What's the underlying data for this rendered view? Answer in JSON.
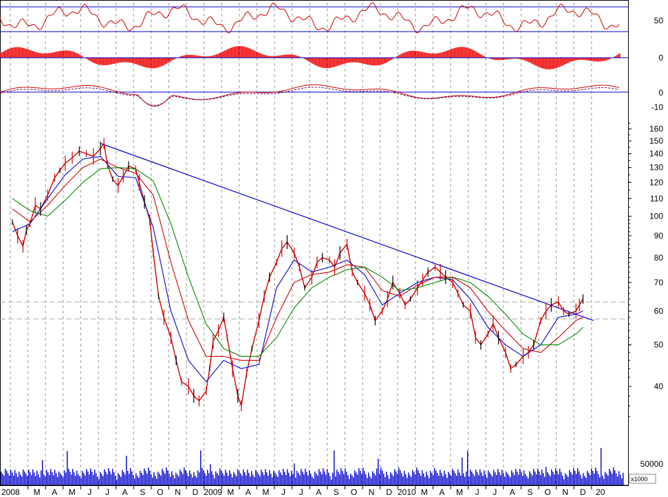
{
  "chart_data": {
    "type": "line",
    "title": "",
    "price_scale": "log",
    "price_ylim": [
      33,
      165
    ],
    "price_ticks": [
      160,
      150,
      140,
      130,
      120,
      110,
      100,
      90,
      80,
      70,
      60,
      50,
      40
    ],
    "rsi_ticks": [
      50
    ],
    "macd_ticks": [
      0
    ],
    "osc_ticks": [
      0,
      -10
    ],
    "volume_ticks": [
      50000
    ],
    "volume_unit": "x1000",
    "x_labels": [
      "2008",
      "M",
      "A",
      "M",
      "J",
      "J",
      "A",
      "S",
      "O",
      "N",
      "D",
      "2009",
      "M",
      "A",
      "M",
      "J",
      "J",
      "A",
      "S",
      "O",
      "N",
      "D",
      "2010",
      "M",
      "A",
      "M",
      "J",
      "J",
      "A",
      "S",
      "O",
      "N",
      "D",
      "20"
    ],
    "dashed_reference_levels": [
      63,
      57.5
    ],
    "colors": {
      "price": "#cc0000",
      "ma_short": "#0000cc",
      "ma_mid": "#cc0000",
      "ma_long": "#008800",
      "trendline": "#0000cc",
      "volume": "#0000cc",
      "indicator": "#cc0000",
      "guide": "#0000cc",
      "grid": "#999999"
    },
    "trendline": {
      "from": {
        "month_index": 5,
        "y": 148
      },
      "to": {
        "month_index": 33,
        "y": 57
      }
    },
    "series": [
      {
        "values": [
          [
            0,
            97
          ],
          [
            0.3,
            90
          ],
          [
            0.6,
            85
          ],
          [
            0.8,
            93
          ],
          [
            1,
            96
          ],
          [
            1.3,
            106
          ],
          [
            1.6,
            104
          ],
          [
            2,
            112
          ],
          [
            2.4,
            123
          ],
          [
            2.7,
            128
          ],
          [
            3,
            133
          ],
          [
            3.4,
            137
          ],
          [
            3.8,
            142
          ],
          [
            4.2,
            140
          ],
          [
            4.6,
            138
          ],
          [
            5,
            144
          ],
          [
            5.2,
            148
          ],
          [
            5.4,
            132
          ],
          [
            5.7,
            122
          ],
          [
            6,
            118
          ],
          [
            6.3,
            124
          ],
          [
            6.6,
            131
          ],
          [
            7,
            129
          ],
          [
            7.2,
            120
          ],
          [
            7.5,
            108
          ],
          [
            7.8,
            98
          ],
          [
            8,
            82
          ],
          [
            8.3,
            65
          ],
          [
            8.6,
            58
          ],
          [
            9,
            52
          ],
          [
            9.3,
            46
          ],
          [
            9.6,
            41
          ],
          [
            10,
            40
          ],
          [
            10.3,
            38
          ],
          [
            10.6,
            37
          ],
          [
            11,
            39
          ],
          [
            11.2,
            44
          ],
          [
            11.4,
            51
          ],
          [
            11.7,
            54
          ],
          [
            12,
            58
          ],
          [
            12.2,
            52
          ],
          [
            12.5,
            44
          ],
          [
            12.8,
            38
          ],
          [
            13,
            36
          ],
          [
            13.3,
            43
          ],
          [
            13.6,
            49
          ],
          [
            14,
            57
          ],
          [
            14.3,
            65
          ],
          [
            14.6,
            72
          ],
          [
            15,
            78
          ],
          [
            15.3,
            84
          ],
          [
            15.6,
            87
          ],
          [
            16,
            82
          ],
          [
            16.3,
            76
          ],
          [
            16.6,
            68
          ],
          [
            17,
            72
          ],
          [
            17.3,
            78
          ],
          [
            17.6,
            80
          ],
          [
            18,
            79
          ],
          [
            18.3,
            76
          ],
          [
            18.6,
            82
          ],
          [
            19,
            86
          ],
          [
            19.3,
            74
          ],
          [
            19.6,
            70
          ],
          [
            20,
            66
          ],
          [
            20.3,
            62
          ],
          [
            20.6,
            57
          ],
          [
            21,
            60
          ],
          [
            21.3,
            64
          ],
          [
            21.6,
            70
          ],
          [
            22,
            66
          ],
          [
            22.3,
            62
          ],
          [
            22.6,
            64
          ],
          [
            23,
            68
          ],
          [
            23.3,
            71
          ],
          [
            23.6,
            74
          ],
          [
            24,
            76
          ],
          [
            24.3,
            74
          ],
          [
            24.6,
            72
          ],
          [
            25,
            70
          ],
          [
            25.3,
            66
          ],
          [
            25.6,
            62
          ],
          [
            26,
            60
          ],
          [
            26.3,
            52
          ],
          [
            26.6,
            50
          ],
          [
            27,
            53
          ],
          [
            27.3,
            56
          ],
          [
            27.6,
            52
          ],
          [
            28,
            48
          ],
          [
            28.3,
            44
          ],
          [
            28.6,
            45
          ],
          [
            29,
            47
          ],
          [
            29.3,
            48
          ],
          [
            29.6,
            50
          ],
          [
            30,
            57
          ],
          [
            30.3,
            60
          ],
          [
            30.6,
            62
          ],
          [
            31,
            63
          ],
          [
            31.3,
            60
          ],
          [
            31.6,
            59
          ],
          [
            32,
            60
          ],
          [
            32.2,
            62
          ],
          [
            32.4,
            64
          ]
        ]
      },
      {
        "values": [
          [
            0,
            92
          ],
          [
            1,
            96
          ],
          [
            2,
            110
          ],
          [
            3,
            125
          ],
          [
            4,
            136
          ],
          [
            5,
            138
          ],
          [
            6,
            124
          ],
          [
            7,
            123
          ],
          [
            8,
            94
          ],
          [
            9,
            60
          ],
          [
            10,
            46
          ],
          [
            11,
            41
          ],
          [
            12,
            46
          ],
          [
            13,
            44
          ],
          [
            14,
            45
          ],
          [
            15,
            68
          ],
          [
            16,
            79
          ],
          [
            17,
            74
          ],
          [
            18,
            76
          ],
          [
            19,
            79
          ],
          [
            20,
            73
          ],
          [
            21,
            62
          ],
          [
            22,
            66
          ],
          [
            23,
            70
          ],
          [
            24,
            72
          ],
          [
            25,
            71
          ],
          [
            26,
            64
          ],
          [
            27,
            55
          ],
          [
            28,
            50
          ],
          [
            29,
            47
          ],
          [
            30,
            50
          ],
          [
            31,
            58
          ],
          [
            32,
            59
          ],
          [
            32.4,
            60
          ]
        ]
      },
      {
        "values": [
          [
            0,
            104
          ],
          [
            1,
            97
          ],
          [
            2,
            106
          ],
          [
            3,
            118
          ],
          [
            4,
            130
          ],
          [
            5,
            136
          ],
          [
            6,
            130
          ],
          [
            7,
            126
          ],
          [
            8,
            112
          ],
          [
            9,
            78
          ],
          [
            10,
            57
          ],
          [
            11,
            47
          ],
          [
            12,
            47
          ],
          [
            13,
            46
          ],
          [
            14,
            46
          ],
          [
            15,
            58
          ],
          [
            16,
            70
          ],
          [
            17,
            73
          ],
          [
            18,
            74
          ],
          [
            19,
            77
          ],
          [
            20,
            76
          ],
          [
            21,
            67
          ],
          [
            22,
            65
          ],
          [
            23,
            69
          ],
          [
            24,
            72
          ],
          [
            25,
            72
          ],
          [
            26,
            68
          ],
          [
            27,
            60
          ],
          [
            28,
            54
          ],
          [
            29,
            49
          ],
          [
            30,
            48
          ],
          [
            31,
            52
          ],
          [
            32,
            57
          ],
          [
            32.4,
            58
          ]
        ]
      },
      {
        "values": [
          [
            0,
            110
          ],
          [
            1,
            103
          ],
          [
            2,
            100
          ],
          [
            3,
            109
          ],
          [
            4,
            120
          ],
          [
            5,
            129
          ],
          [
            6,
            130
          ],
          [
            7,
            129
          ],
          [
            8,
            121
          ],
          [
            9,
            96
          ],
          [
            10,
            72
          ],
          [
            11,
            56
          ],
          [
            12,
            49
          ],
          [
            13,
            47
          ],
          [
            14,
            47
          ],
          [
            15,
            52
          ],
          [
            16,
            61
          ],
          [
            17,
            68
          ],
          [
            18,
            72
          ],
          [
            19,
            75
          ],
          [
            20,
            76
          ],
          [
            21,
            72
          ],
          [
            22,
            67
          ],
          [
            23,
            68
          ],
          [
            24,
            70
          ],
          [
            25,
            72
          ],
          [
            26,
            70
          ],
          [
            27,
            65
          ],
          [
            28,
            59
          ],
          [
            29,
            53
          ],
          [
            30,
            50
          ],
          [
            31,
            50
          ],
          [
            32,
            53
          ],
          [
            32.4,
            55
          ]
        ]
      }
    ]
  }
}
